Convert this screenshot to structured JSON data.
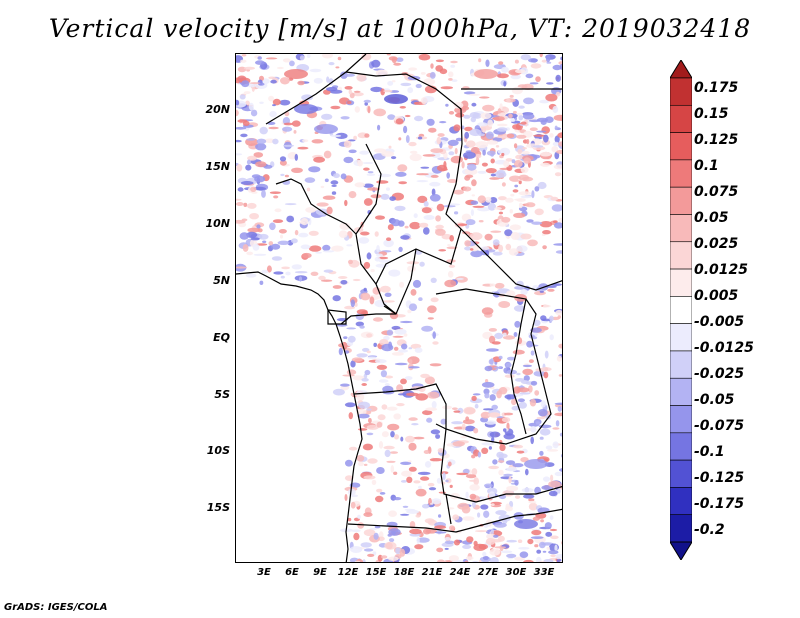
{
  "title": "Vertical velocity [m/s] at 1000hPa, VT: 2019032418",
  "credit": "GrADS: IGES/COLA",
  "lat_labels": [
    "20N",
    "15N",
    "10N",
    "5N",
    "EQ",
    "5S",
    "10S",
    "15S"
  ],
  "lon_labels": [
    "3E",
    "6E",
    "9E",
    "12E",
    "15E",
    "18E",
    "21E",
    "24E",
    "27E",
    "30E",
    "33E"
  ],
  "colorbar": {
    "labels": [
      "0.175",
      "0.15",
      "0.125",
      "0.1",
      "0.075",
      "0.05",
      "0.025",
      "0.0125",
      "0.005",
      "-0.005",
      "-0.0125",
      "-0.025",
      "-0.05",
      "-0.075",
      "-0.1",
      "-0.125",
      "-0.175",
      "-0.2"
    ],
    "colors": [
      "#a21c1c",
      "#c13131",
      "#d64545",
      "#e65d5d",
      "#ee7a7a",
      "#f39a9a",
      "#f8baba",
      "#fbd6d6",
      "#fdecec",
      "#ffffff",
      "#ececfd",
      "#d0d0f8",
      "#b3b3f3",
      "#9595ec",
      "#7575e2",
      "#5252d4",
      "#3030c0",
      "#1c1ca6",
      "#11118a"
    ]
  }
}
